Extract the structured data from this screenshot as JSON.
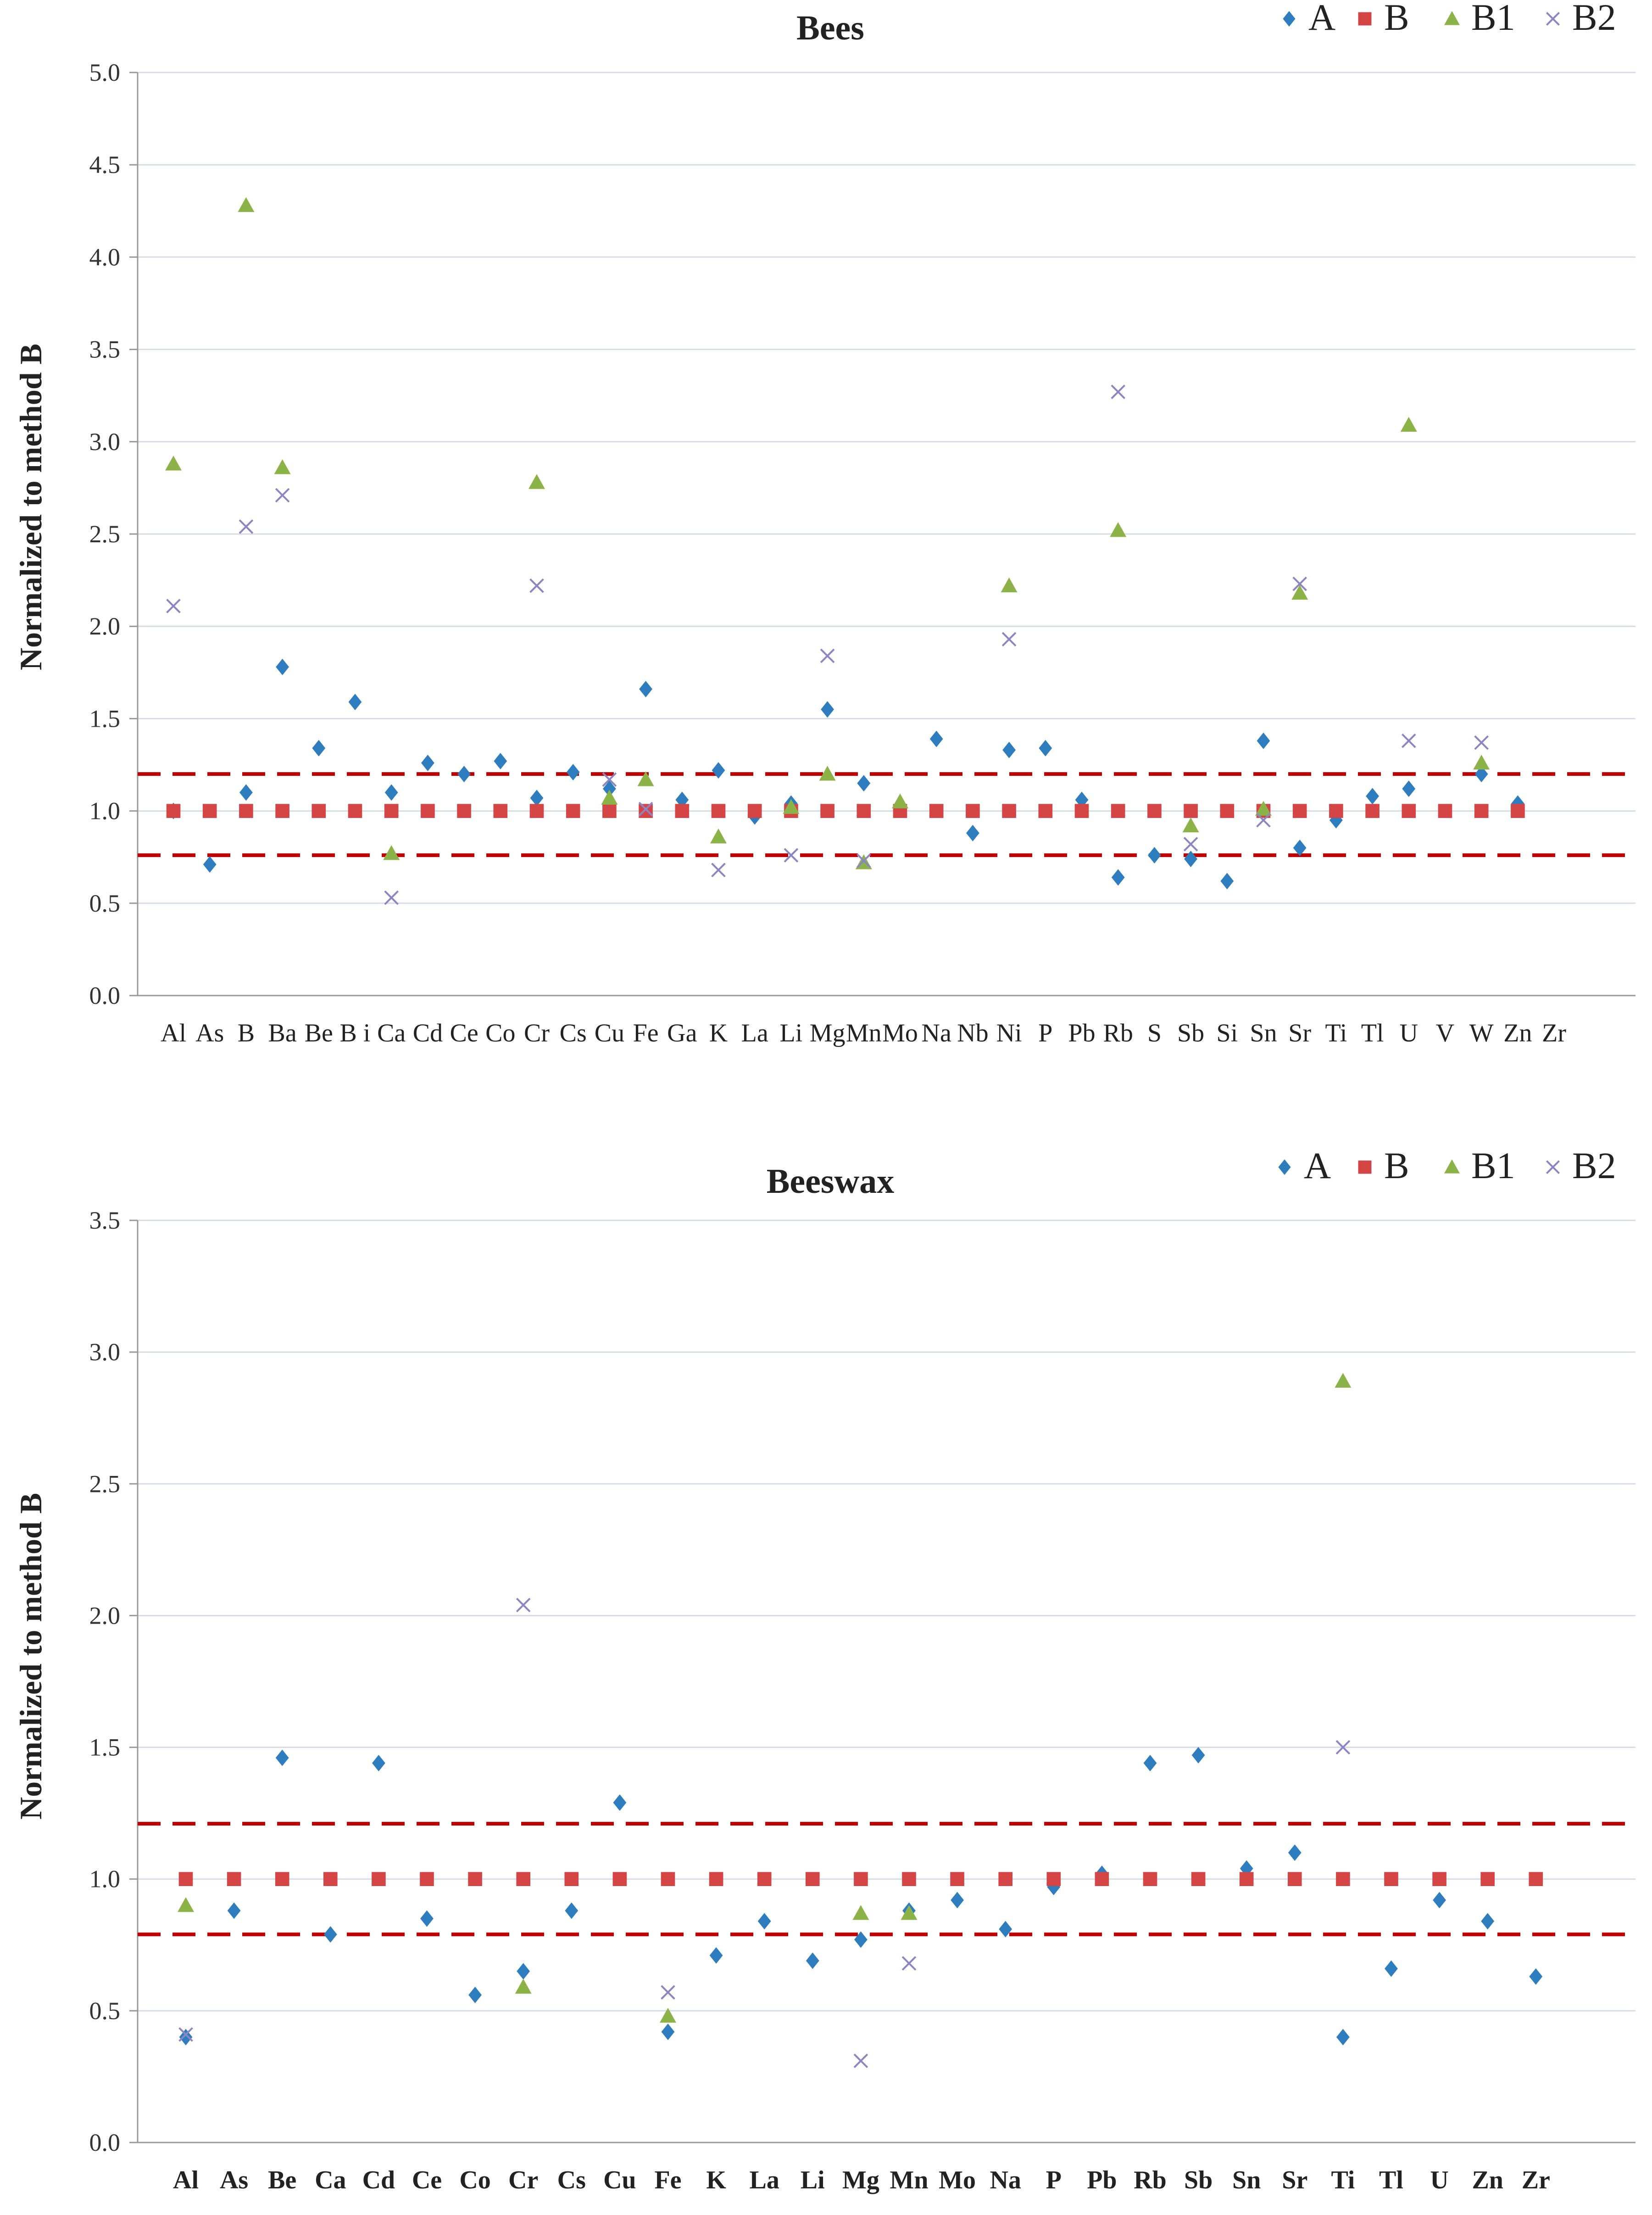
{
  "colors": {
    "A": "#2E7DBF",
    "B": "#D64545",
    "B1": "#8BB347",
    "B2": "#8B86C3",
    "grid": "#D4DDE6",
    "axis": "#999999",
    "dash": "#C00000"
  },
  "legend": [
    {
      "key": "A",
      "label": "A",
      "marker": "diamond-icon"
    },
    {
      "key": "B",
      "label": "B",
      "marker": "square-icon"
    },
    {
      "key": "B1",
      "label": "B1",
      "marker": "triangle-icon"
    },
    {
      "key": "B2",
      "label": "B2",
      "marker": "cross-icon"
    }
  ],
  "chart_data": [
    {
      "type": "scatter",
      "title": "Bees",
      "ylabel": "Normalized to method B",
      "xlabel": "",
      "ylim": [
        0,
        5
      ],
      "yticks": [
        "0.0",
        "0.5",
        "1.0",
        "1.5",
        "2.0",
        "2.5",
        "3.0",
        "3.5",
        "4.0",
        "4.5",
        "5.0"
      ],
      "categories": [
        "Al",
        "As",
        "B",
        "Ba",
        "Be",
        "B i",
        "Ca",
        "Cd",
        "Ce",
        "Co",
        "Cr",
        "Cs",
        "Cu",
        "Fe",
        "Ga",
        "K",
        "La",
        "Li",
        "Mg",
        "Mn",
        "Mo",
        "Na",
        "Nb",
        "Ni",
        "P",
        "Pb",
        "Rb",
        "S",
        "Sb",
        "Si",
        "Sn",
        "Sr",
        "Ti",
        "Tl",
        "U",
        "V",
        "W",
        "Zn",
        "Zr"
      ],
      "thresholds": [
        1.2,
        0.76
      ],
      "legend_position": "top-right",
      "series": [
        {
          "name": "A",
          "values": [
            1.0,
            0.71,
            1.1,
            1.78,
            1.34,
            1.59,
            1.1,
            1.26,
            1.2,
            1.27,
            1.07,
            1.21,
            1.12,
            1.66,
            1.06,
            1.22,
            0.97,
            1.04,
            1.55,
            1.15,
            null,
            1.39,
            0.88,
            1.33,
            1.34,
            1.06,
            0.64,
            0.76,
            0.74,
            0.62,
            1.38,
            0.8,
            0.95,
            1.08,
            1.12,
            null,
            1.2,
            1.04,
            null
          ]
        },
        {
          "name": "B",
          "values": [
            1.0,
            1.0,
            1.0,
            1.0,
            1.0,
            1.0,
            1.0,
            1.0,
            1.0,
            1.0,
            1.0,
            1.0,
            1.0,
            1.0,
            1.0,
            1.0,
            1.0,
            1.0,
            1.0,
            1.0,
            1.0,
            1.0,
            1.0,
            1.0,
            1.0,
            1.0,
            1.0,
            1.0,
            1.0,
            1.0,
            1.0,
            1.0,
            1.0,
            1.0,
            1.0,
            1.0,
            1.0,
            1.0,
            null
          ]
        },
        {
          "name": "B1",
          "values": [
            2.88,
            null,
            4.28,
            2.86,
            null,
            null,
            0.77,
            null,
            null,
            null,
            2.78,
            null,
            1.07,
            1.17,
            null,
            0.86,
            null,
            1.02,
            1.2,
            0.72,
            1.05,
            null,
            null,
            2.22,
            null,
            null,
            2.52,
            null,
            0.92,
            null,
            1.01,
            2.18,
            null,
            null,
            3.09,
            null,
            1.26,
            null,
            null
          ]
        },
        {
          "name": "B2",
          "values": [
            2.11,
            null,
            2.54,
            2.71,
            null,
            null,
            0.53,
            null,
            null,
            null,
            2.22,
            null,
            1.17,
            1.01,
            null,
            0.68,
            null,
            0.76,
            1.84,
            0.73,
            null,
            null,
            null,
            1.93,
            null,
            null,
            3.27,
            null,
            0.82,
            null,
            0.95,
            2.23,
            null,
            null,
            1.38,
            null,
            1.37,
            null,
            null
          ]
        }
      ]
    },
    {
      "type": "scatter",
      "title": "Beeswax",
      "ylabel": "Normalized to method B",
      "xlabel": "",
      "ylim": [
        0,
        3.5
      ],
      "yticks": [
        "0.0",
        "0.5",
        "1.0",
        "1.5",
        "2.0",
        "2.5",
        "3.0",
        "3.5"
      ],
      "categories": [
        "Al",
        "As",
        "Be",
        "Ca",
        "Cd",
        "Ce",
        "Co",
        "Cr",
        "Cs",
        "Cu",
        "Fe",
        "K",
        "La",
        "Li",
        "Mg",
        "Mn",
        "Mo",
        "Na",
        "P",
        "Pb",
        "Rb",
        "Sb",
        "Sn",
        "Sr",
        "Ti",
        "Tl",
        "U",
        "Zn",
        "Zr"
      ],
      "thresholds": [
        1.21,
        0.79
      ],
      "legend_position": "top-right",
      "series": [
        {
          "name": "A",
          "values": [
            0.4,
            0.88,
            1.46,
            0.79,
            1.44,
            0.85,
            0.56,
            0.65,
            0.88,
            1.29,
            0.42,
            0.71,
            0.84,
            0.69,
            0.77,
            0.88,
            0.92,
            0.81,
            0.97,
            1.02,
            1.44,
            1.47,
            1.04,
            1.1,
            0.4,
            0.66,
            0.92,
            0.84,
            0.63
          ]
        },
        {
          "name": "B",
          "values": [
            1.0,
            1.0,
            1.0,
            1.0,
            1.0,
            1.0,
            1.0,
            1.0,
            1.0,
            1.0,
            1.0,
            1.0,
            1.0,
            1.0,
            1.0,
            1.0,
            1.0,
            1.0,
            1.0,
            1.0,
            1.0,
            1.0,
            1.0,
            1.0,
            1.0,
            1.0,
            1.0,
            1.0,
            1.0
          ]
        },
        {
          "name": "B1",
          "values": [
            0.9,
            null,
            null,
            null,
            null,
            null,
            null,
            0.59,
            null,
            null,
            0.48,
            null,
            null,
            null,
            0.87,
            0.87,
            null,
            null,
            null,
            null,
            null,
            null,
            null,
            null,
            2.89,
            null,
            null,
            null,
            null
          ]
        },
        {
          "name": "B2",
          "values": [
            0.41,
            null,
            null,
            null,
            null,
            null,
            null,
            2.04,
            null,
            null,
            0.57,
            null,
            null,
            null,
            0.31,
            0.68,
            null,
            null,
            null,
            null,
            null,
            null,
            null,
            null,
            1.5,
            null,
            null,
            null,
            null
          ]
        }
      ]
    }
  ]
}
